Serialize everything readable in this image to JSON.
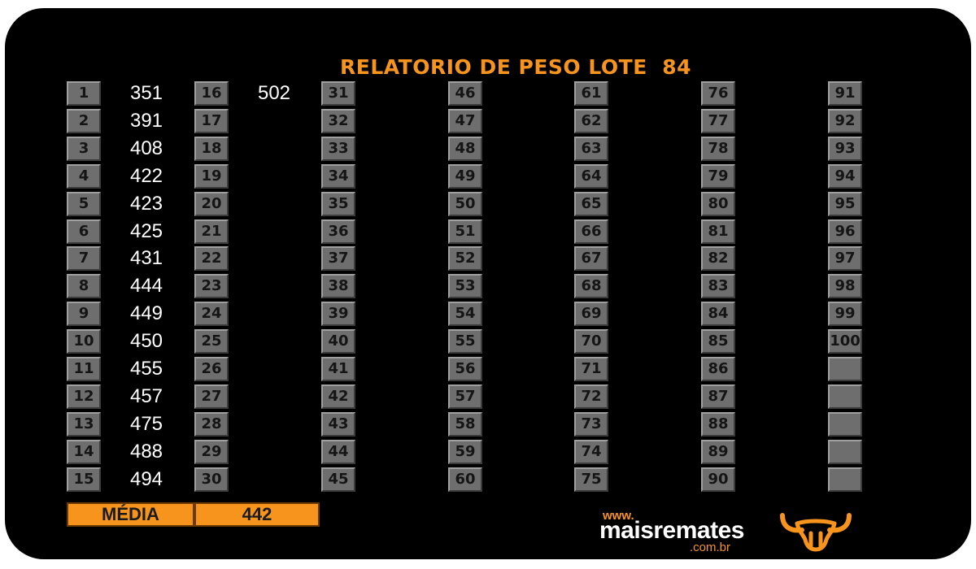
{
  "title": "RELATORIO DE PESO LOTE  84",
  "columns": [
    {
      "rows": [
        {
          "num": "1",
          "weight": "351"
        },
        {
          "num": "2",
          "weight": "391"
        },
        {
          "num": "3",
          "weight": "408"
        },
        {
          "num": "4",
          "weight": "422"
        },
        {
          "num": "5",
          "weight": "423"
        },
        {
          "num": "6",
          "weight": "425"
        },
        {
          "num": "7",
          "weight": "431"
        },
        {
          "num": "8",
          "weight": "444"
        },
        {
          "num": "9",
          "weight": "449"
        },
        {
          "num": "10",
          "weight": "450"
        },
        {
          "num": "11",
          "weight": "455"
        },
        {
          "num": "12",
          "weight": "457"
        },
        {
          "num": "13",
          "weight": "475"
        },
        {
          "num": "14",
          "weight": "488"
        },
        {
          "num": "15",
          "weight": "494"
        }
      ]
    },
    {
      "rows": [
        {
          "num": "16",
          "weight": "502"
        },
        {
          "num": "17",
          "weight": ""
        },
        {
          "num": "18",
          "weight": ""
        },
        {
          "num": "19",
          "weight": ""
        },
        {
          "num": "20",
          "weight": ""
        },
        {
          "num": "21",
          "weight": ""
        },
        {
          "num": "22",
          "weight": ""
        },
        {
          "num": "23",
          "weight": ""
        },
        {
          "num": "24",
          "weight": ""
        },
        {
          "num": "25",
          "weight": ""
        },
        {
          "num": "26",
          "weight": ""
        },
        {
          "num": "27",
          "weight": ""
        },
        {
          "num": "28",
          "weight": ""
        },
        {
          "num": "29",
          "weight": ""
        },
        {
          "num": "30",
          "weight": ""
        }
      ]
    },
    {
      "rows": [
        {
          "num": "31",
          "weight": ""
        },
        {
          "num": "32",
          "weight": ""
        },
        {
          "num": "33",
          "weight": ""
        },
        {
          "num": "34",
          "weight": ""
        },
        {
          "num": "35",
          "weight": ""
        },
        {
          "num": "36",
          "weight": ""
        },
        {
          "num": "37",
          "weight": ""
        },
        {
          "num": "38",
          "weight": ""
        },
        {
          "num": "39",
          "weight": ""
        },
        {
          "num": "40",
          "weight": ""
        },
        {
          "num": "41",
          "weight": ""
        },
        {
          "num": "42",
          "weight": ""
        },
        {
          "num": "43",
          "weight": ""
        },
        {
          "num": "44",
          "weight": ""
        },
        {
          "num": "45",
          "weight": ""
        }
      ]
    },
    {
      "rows": [
        {
          "num": "46",
          "weight": ""
        },
        {
          "num": "47",
          "weight": ""
        },
        {
          "num": "48",
          "weight": ""
        },
        {
          "num": "49",
          "weight": ""
        },
        {
          "num": "50",
          "weight": ""
        },
        {
          "num": "51",
          "weight": ""
        },
        {
          "num": "52",
          "weight": ""
        },
        {
          "num": "53",
          "weight": ""
        },
        {
          "num": "54",
          "weight": ""
        },
        {
          "num": "55",
          "weight": ""
        },
        {
          "num": "56",
          "weight": ""
        },
        {
          "num": "57",
          "weight": ""
        },
        {
          "num": "58",
          "weight": ""
        },
        {
          "num": "59",
          "weight": ""
        },
        {
          "num": "60",
          "weight": ""
        }
      ]
    },
    {
      "rows": [
        {
          "num": "61",
          "weight": ""
        },
        {
          "num": "62",
          "weight": ""
        },
        {
          "num": "63",
          "weight": ""
        },
        {
          "num": "64",
          "weight": ""
        },
        {
          "num": "65",
          "weight": ""
        },
        {
          "num": "66",
          "weight": ""
        },
        {
          "num": "67",
          "weight": ""
        },
        {
          "num": "68",
          "weight": ""
        },
        {
          "num": "69",
          "weight": ""
        },
        {
          "num": "70",
          "weight": ""
        },
        {
          "num": "71",
          "weight": ""
        },
        {
          "num": "72",
          "weight": ""
        },
        {
          "num": "73",
          "weight": ""
        },
        {
          "num": "74",
          "weight": ""
        },
        {
          "num": "75",
          "weight": ""
        }
      ]
    },
    {
      "rows": [
        {
          "num": "76",
          "weight": ""
        },
        {
          "num": "77",
          "weight": ""
        },
        {
          "num": "78",
          "weight": ""
        },
        {
          "num": "79",
          "weight": ""
        },
        {
          "num": "80",
          "weight": ""
        },
        {
          "num": "81",
          "weight": ""
        },
        {
          "num": "82",
          "weight": ""
        },
        {
          "num": "83",
          "weight": ""
        },
        {
          "num": "84",
          "weight": ""
        },
        {
          "num": "85",
          "weight": ""
        },
        {
          "num": "86",
          "weight": ""
        },
        {
          "num": "87",
          "weight": ""
        },
        {
          "num": "88",
          "weight": ""
        },
        {
          "num": "89",
          "weight": ""
        },
        {
          "num": "90",
          "weight": ""
        }
      ]
    },
    {
      "rows": [
        {
          "num": "91",
          "weight": ""
        },
        {
          "num": "92",
          "weight": ""
        },
        {
          "num": "93",
          "weight": ""
        },
        {
          "num": "94",
          "weight": ""
        },
        {
          "num": "95",
          "weight": ""
        },
        {
          "num": "96",
          "weight": ""
        },
        {
          "num": "97",
          "weight": ""
        },
        {
          "num": "98",
          "weight": ""
        },
        {
          "num": "99",
          "weight": ""
        },
        {
          "num": "100",
          "weight": ""
        },
        {
          "num": "",
          "weight": ""
        },
        {
          "num": "",
          "weight": ""
        },
        {
          "num": "",
          "weight": ""
        },
        {
          "num": "",
          "weight": ""
        },
        {
          "num": "",
          "weight": ""
        }
      ]
    }
  ],
  "summary": {
    "label": "MÉDIA",
    "value": "442"
  },
  "logo": {
    "www": "www.",
    "brand": "maisremates",
    "domain": ".com.br",
    "icon": "bull-head-icon"
  },
  "colors": {
    "background": "#000000",
    "accent": "#f7941d",
    "cell": "#6e6e6e",
    "text": "#ffffff"
  }
}
